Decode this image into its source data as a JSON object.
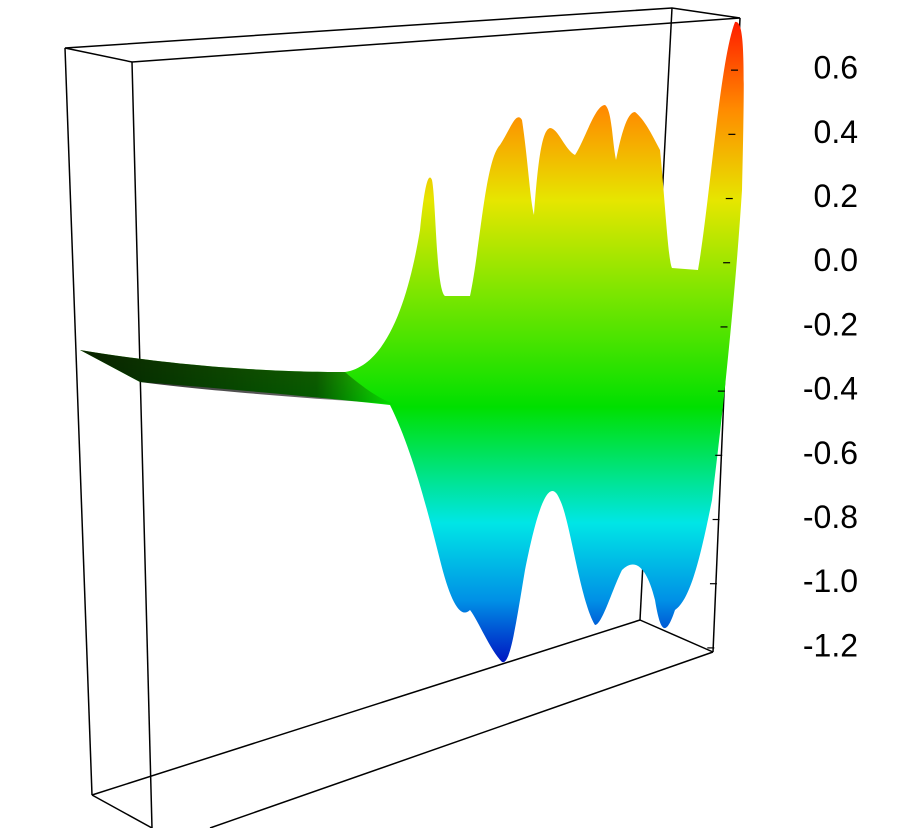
{
  "chart_data": {
    "type": "surface",
    "zlim": [
      -1.3,
      0.75
    ],
    "zticks": [
      0.6,
      0.4,
      0.2,
      {
        "value": 0,
        "label": "0.0"
      },
      -0.2,
      -0.4,
      -0.6,
      -0.8,
      {
        "value": -1,
        "label": "-1.0"
      },
      -1.2
    ]
  }
}
